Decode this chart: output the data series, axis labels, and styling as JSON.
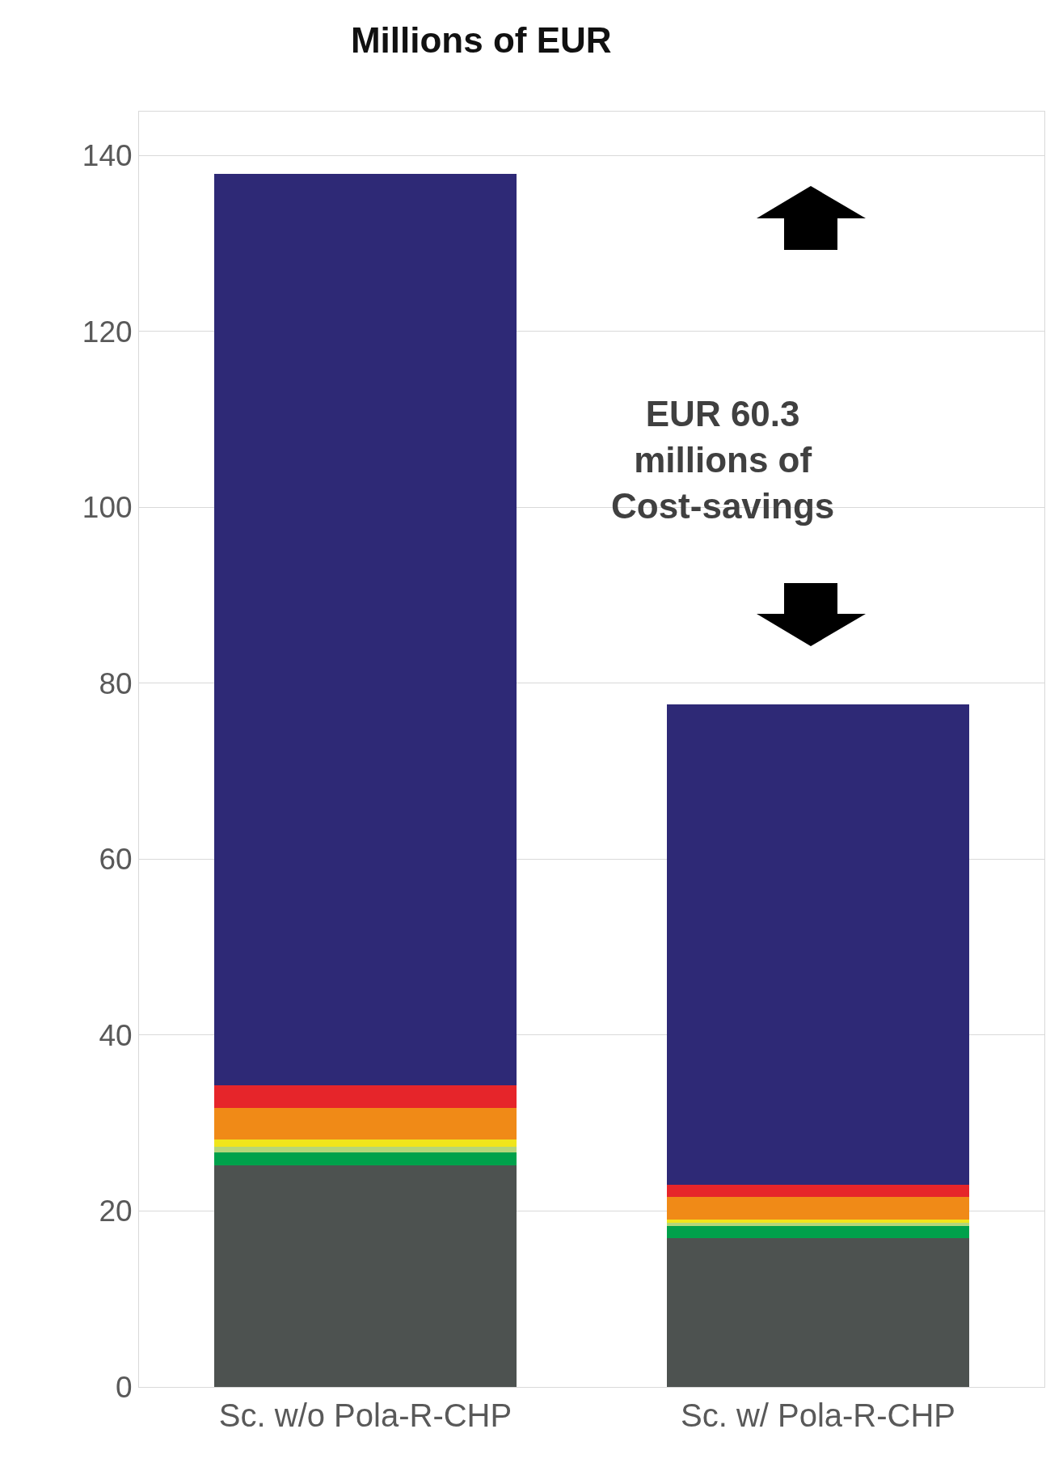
{
  "chart_data": {
    "type": "bar",
    "title": "Millions of EUR",
    "categories": [
      "Sc. w/o Pola-R-CHP",
      "Sc. w/ Pola-R-CHP"
    ],
    "stacked": true,
    "series": [
      {
        "color": "#4d5250",
        "values": [
          25.2,
          16.9
        ]
      },
      {
        "color": "#00a14b",
        "values": [
          1.5,
          1.4
        ]
      },
      {
        "color": "#b5d67a",
        "values": [
          0.6,
          0.4
        ]
      },
      {
        "color": "#f0e51c",
        "values": [
          0.8,
          0.3
        ]
      },
      {
        "color": "#f08a17",
        "values": [
          3.6,
          2.6
        ]
      },
      {
        "color": "#e6252a",
        "values": [
          2.6,
          1.4
        ]
      },
      {
        "color": "#2e2976",
        "values": [
          103.6,
          54.6
        ]
      }
    ],
    "ylim": [
      0,
      145
    ],
    "yticks": [
      0,
      20,
      40,
      60,
      80,
      100,
      120,
      140
    ],
    "grid": "y",
    "annotations": [
      "EUR 60.3\nmillions of\nCost-savings"
    ]
  }
}
